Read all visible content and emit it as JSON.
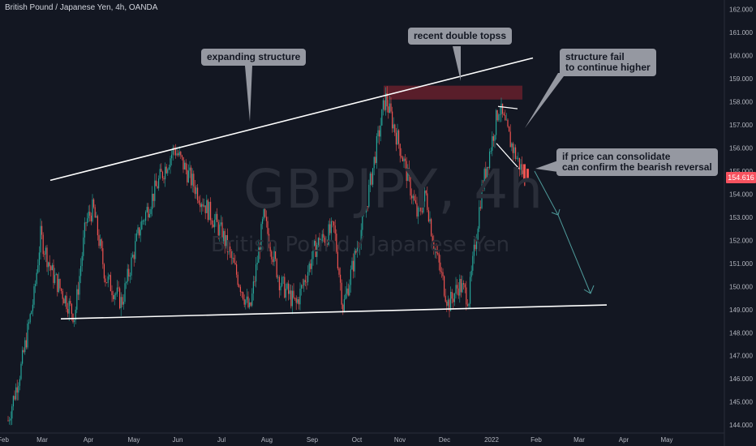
{
  "header": {
    "symbol_title": "British Pound / Japanese Yen, 4h, OANDA"
  },
  "watermark": {
    "ticker": "GBPJPY, 4h",
    "name": "British Pound / Japanese Yen"
  },
  "colors": {
    "background": "#131722",
    "up_candle": "#26a69a",
    "down_candle": "#ef5350",
    "annotation_line": "#ffffff",
    "callout_bg": "#9598a1",
    "zone_fill": "#5d1f2b",
    "projection_arrow": "#4e9a9a",
    "price_badge": "#f7525f"
  },
  "annotations": {
    "expanding_structure": "expanding structure",
    "double_tops": "recent double topss",
    "structure_fail": "structure fail\nto continue higher",
    "consolidate": "if price can consolidate\ncan confirm the bearish reversal"
  },
  "chart_data": {
    "type": "candlestick",
    "symbol": "GBPJPY",
    "timeframe": "4h",
    "source": "OANDA",
    "current_price": "154.616",
    "ylim": [
      143.9,
      162.2
    ],
    "y_ticks": [
      "162.000",
      "161.000",
      "160.000",
      "159.000",
      "158.000",
      "157.000",
      "156.000",
      "155.000",
      "154.000",
      "153.000",
      "152.000",
      "151.000",
      "150.000",
      "149.000",
      "148.000",
      "147.000",
      "146.000",
      "145.000",
      "144.000"
    ],
    "x_ticks": [
      "Feb",
      "Mar",
      "Apr",
      "May",
      "Jun",
      "Jul",
      "Aug",
      "Sep",
      "Oct",
      "Nov",
      "Dec",
      "2022",
      "Feb",
      "Mar",
      "Apr",
      "May"
    ],
    "price_path": [
      {
        "t": "Feb",
        "p": 144.2
      },
      {
        "t": "Feb",
        "p": 146.5
      },
      {
        "t": "Mar",
        "p": 149.6
      },
      {
        "t": "Mar",
        "p": 152.2
      },
      {
        "t": "Mar",
        "p": 150.6
      },
      {
        "t": "Mar",
        "p": 148.7
      },
      {
        "t": "Apr",
        "p": 152.8
      },
      {
        "t": "Apr",
        "p": 153.4
      },
      {
        "t": "Apr",
        "p": 150.4
      },
      {
        "t": "May",
        "p": 149.3
      },
      {
        "t": "May",
        "p": 152.5
      },
      {
        "t": "May",
        "p": 154.6
      },
      {
        "t": "Jun",
        "p": 156.0
      },
      {
        "t": "Jun",
        "p": 154.0
      },
      {
        "t": "Jul",
        "p": 152.2
      },
      {
        "t": "Jul",
        "p": 150.5
      },
      {
        "t": "Jul",
        "p": 148.9
      },
      {
        "t": "Aug",
        "p": 153.0
      },
      {
        "t": "Aug",
        "p": 150.2
      },
      {
        "t": "Sep",
        "p": 149.2
      },
      {
        "t": "Sep",
        "p": 151.8
      },
      {
        "t": "Sep",
        "p": 152.5
      },
      {
        "t": "Oct",
        "p": 149.1
      },
      {
        "t": "Oct",
        "p": 153.2
      },
      {
        "t": "Oct",
        "p": 158.2
      },
      {
        "t": "Nov",
        "p": 155.8
      },
      {
        "t": "Nov",
        "p": 153.0
      },
      {
        "t": "Nov",
        "p": 154.0
      },
      {
        "t": "Nov",
        "p": 151.8
      },
      {
        "t": "Dec",
        "p": 149.2
      },
      {
        "t": "Dec",
        "p": 150.1
      },
      {
        "t": "Dec",
        "p": 149.5
      },
      {
        "t": "2022",
        "p": 154.0
      },
      {
        "t": "2022",
        "p": 157.8
      },
      {
        "t": "2022",
        "p": 156.2
      },
      {
        "t": "Feb",
        "p": 154.6
      }
    ],
    "trendlines": [
      {
        "name": "expanding-structure-upper",
        "from": {
          "t": "Mar",
          "p": 154.6
        },
        "to": {
          "t": "Feb",
          "p": 159.9
        }
      },
      {
        "name": "expanding-structure-lower",
        "from": {
          "t": "Mar",
          "p": 148.6
        },
        "to": {
          "t": "Apr",
          "p": 149.2
        }
      }
    ],
    "resistance_zone": {
      "p_low": 158.1,
      "p_high": 158.7
    },
    "projection": {
      "from_price": 155.0,
      "to_price": 149.7
    }
  }
}
